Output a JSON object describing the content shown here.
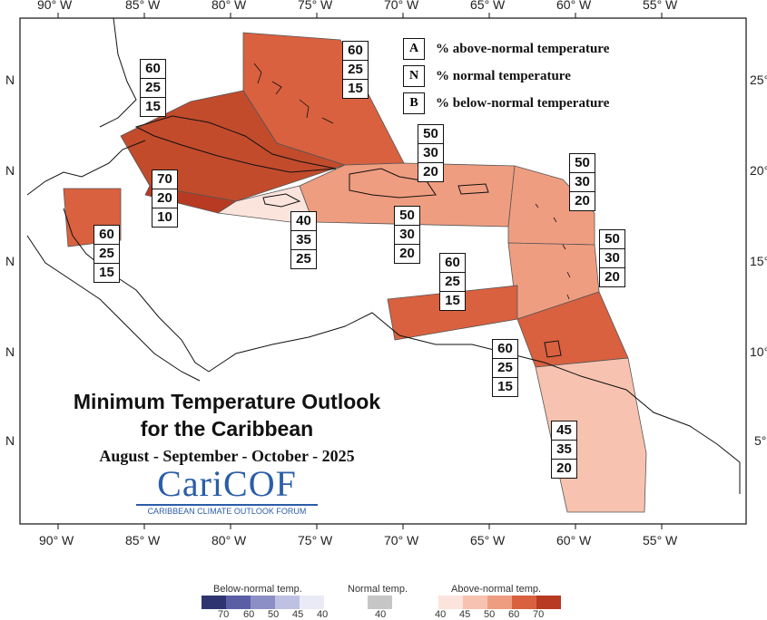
{
  "title_line1": "Minimum Temperature Outlook",
  "title_line2": "for the Caribbean",
  "subtitle": "August - September - October - 2025",
  "logo": {
    "name": "CariCOF",
    "tagline": "CARIBBEAN CLIMATE OUTLOOK FORUM"
  },
  "legend": [
    {
      "key": "A",
      "text": "% above-normal temperature"
    },
    {
      "key": "N",
      "text": "% normal temperature"
    },
    {
      "key": "B",
      "text": "% below-normal temperature"
    }
  ],
  "lon_ticks": [
    "90° W",
    "85° W",
    "80° W",
    "75° W",
    "70° W",
    "65° W",
    "60° W",
    "55° W"
  ],
  "lat_ticks_left": [
    "N",
    "N",
    "N",
    "N",
    "N"
  ],
  "lat_ticks_right": [
    "25°",
    "20°",
    "15°",
    "10°",
    "5°"
  ],
  "probabilities": [
    {
      "id": "bahamas",
      "a": "60",
      "n": "25",
      "b": "15"
    },
    {
      "id": "cuba",
      "a": "60",
      "n": "25",
      "b": "15"
    },
    {
      "id": "hispaniola-north",
      "a": "50",
      "n": "30",
      "b": "20"
    },
    {
      "id": "northern-leewards",
      "a": "50",
      "n": "30",
      "b": "20"
    },
    {
      "id": "cayman-jamaica-west",
      "a": "70",
      "n": "20",
      "b": "10"
    },
    {
      "id": "jamaica",
      "a": "40",
      "n": "35",
      "b": "25"
    },
    {
      "id": "puerto-rico",
      "a": "50",
      "n": "30",
      "b": "20"
    },
    {
      "id": "windwards",
      "a": "50",
      "n": "30",
      "b": "20"
    },
    {
      "id": "belize",
      "a": "60",
      "n": "25",
      "b": "15"
    },
    {
      "id": "abc-islands",
      "a": "60",
      "n": "25",
      "b": "15"
    },
    {
      "id": "trinidad",
      "a": "60",
      "n": "25",
      "b": "15"
    },
    {
      "id": "guianas",
      "a": "45",
      "n": "35",
      "b": "20"
    }
  ],
  "colorbar": {
    "below_title": "Below-normal temp.",
    "normal_title": "Normal temp.",
    "above_title": "Above-normal temp.",
    "below_values": [
      "70",
      "60",
      "50",
      "45",
      "40"
    ],
    "normal_value": "40",
    "above_values": [
      "40",
      "45",
      "50",
      "60",
      "70"
    ],
    "below_colors": [
      "#2e3470",
      "#5a5fa5",
      "#8c8fc6",
      "#bfc1e3",
      "#e9eaf6"
    ],
    "normal_color": "#c6c6c6",
    "above_colors": [
      "#fbe4dc",
      "#f7c3b0",
      "#ef9d80",
      "#d9613f",
      "#b83a22"
    ]
  },
  "zone_colors": {
    "above_70": "#b83a22",
    "above_60": "#d9613f",
    "above_50": "#ef9d80",
    "above_45": "#f7c3b0",
    "above_40": "#fbe4dc"
  }
}
